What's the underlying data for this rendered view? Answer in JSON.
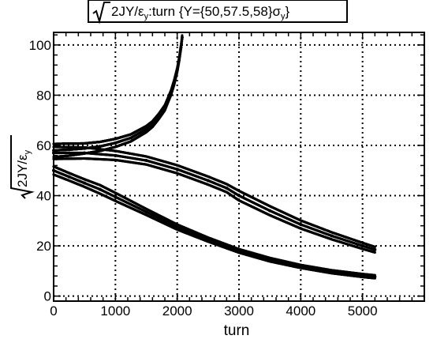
{
  "chart_data": {
    "type": "scatter",
    "title": {
      "prefix": "2JY/ε",
      "prefix_sub": "y",
      "middle": ":turn {Y={50,57.5,58}σ",
      "middle_sub": "y",
      "suffix": "}"
    },
    "xlabel": "turn",
    "ylabel": {
      "main": "2JY/ε",
      "sub": "y"
    },
    "xlim": [
      0,
      6000
    ],
    "ylim": [
      -2,
      105
    ],
    "x_ticks": [
      0,
      1000,
      2000,
      3000,
      4000,
      5000
    ],
    "x_tick_labels": [
      "0",
      "1000",
      "2000",
      "3000",
      "4000",
      "5000"
    ],
    "y_ticks": [
      0,
      20,
      40,
      60,
      80,
      100
    ],
    "y_tick_labels": [
      "0",
      "20",
      "40",
      "60",
      "80",
      "100"
    ],
    "grid": true,
    "marker_color": "#000000",
    "series": [
      {
        "x": [
          0,
          250,
          500,
          750,
          1000,
          1250,
          1500,
          1600,
          1700,
          1800,
          1850,
          1900,
          1950,
          2000,
          2030,
          2060,
          2080
        ],
        "y": [
          58,
          58.3,
          58.8,
          59.6,
          61,
          63,
          66.5,
          68.5,
          71.5,
          75,
          78,
          81,
          85,
          90,
          94,
          99,
          103
        ],
        "band": [
          2.6,
          2.4,
          2.0,
          1.8,
          1.6,
          1.4,
          1.2,
          1.1,
          1.0,
          1.0,
          0.9,
          0.9,
          0.9,
          0.8,
          0.8,
          0.8,
          0.8
        ]
      },
      {
        "x": [
          0,
          500,
          1000,
          1500,
          2000,
          2500,
          2800,
          3000,
          3500,
          4000,
          4500,
          5000,
          5200
        ],
        "y": [
          57,
          57,
          56,
          54,
          50.5,
          46,
          43,
          40,
          34,
          28.5,
          24,
          20,
          18.5
        ],
        "band": [
          2.4,
          2.2,
          1.8,
          1.6,
          1.6,
          1.6,
          1.6,
          1.9,
          1.8,
          1.6,
          1.4,
          1.2,
          1.1
        ]
      },
      {
        "x": [
          0,
          250,
          500,
          750,
          1000,
          1500,
          2000,
          2500,
          3000,
          3500,
          4000,
          4500,
          5000,
          5200
        ],
        "y": [
          50,
          47.5,
          45,
          42.5,
          39.5,
          33.5,
          27.5,
          22.5,
          18,
          14.5,
          11.8,
          9.7,
          8.2,
          7.7
        ],
        "band": [
          1.6,
          1.5,
          1.5,
          1.7,
          1.6,
          1.2,
          1.0,
          0.8,
          0.7,
          0.7,
          0.6,
          0.6,
          0.6,
          0.6
        ]
      }
    ]
  }
}
